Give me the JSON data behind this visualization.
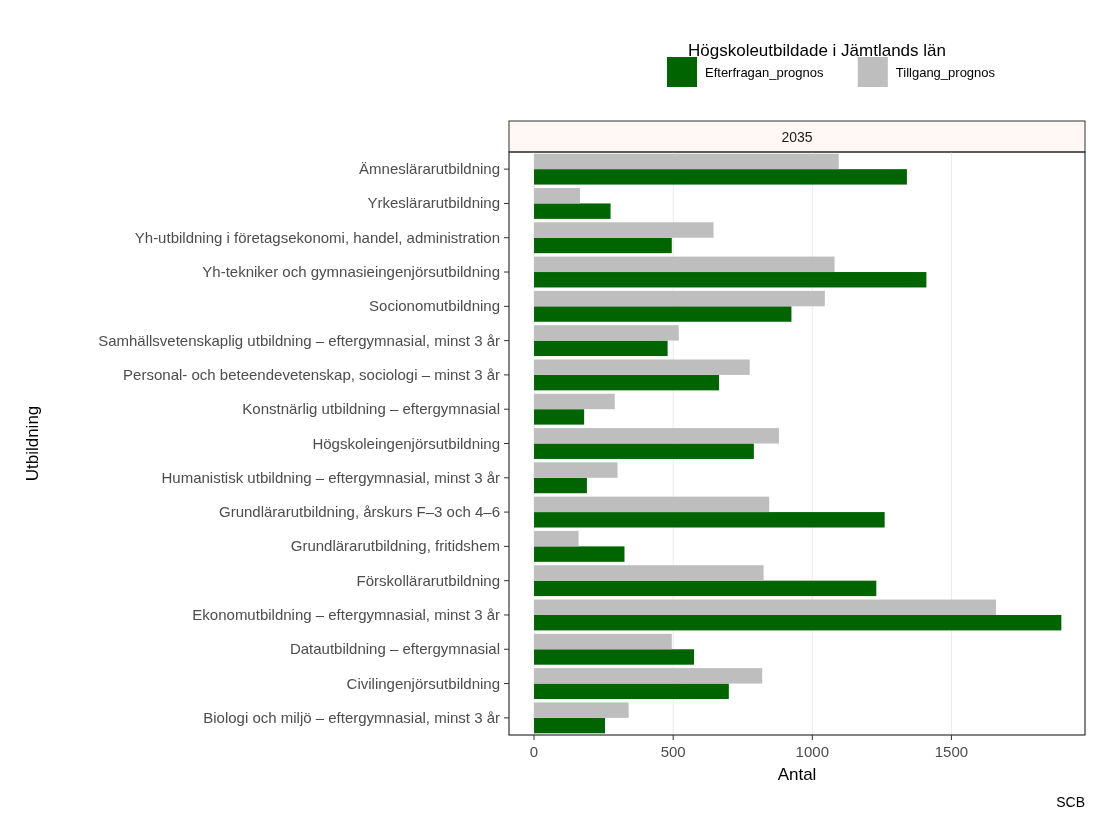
{
  "chart_data": {
    "type": "bar",
    "orientation": "horizontal",
    "title": "Högskoleutbildade i Jämtlands län",
    "subtitle": "2035",
    "xlabel": "Antal",
    "ylabel": "Utbildning",
    "categories": [
      "Ämneslärarutbildning",
      "Yrkeslärarutbildning",
      "Yh-utbildning i företagsekonomi, handel, administration",
      "Yh-tekniker och gymnasieingenjörsutbildning",
      "Socionomutbildning",
      "Samhällsvetenskaplig utbildning – eftergymnasial, minst 3 år",
      "Personal- och beteendevetenskap, sociologi – minst 3 år",
      "Konstnärlig utbildning – eftergymnasial",
      "Högskoleingenjörsutbildning",
      "Humanistisk utbildning – eftergymnasial, minst 3 år",
      "Grundlärarutbildning, årskurs F–3 och 4–6",
      "Grundlärarutbildning, fritidshem",
      "Förskollärarutbildning",
      "Ekonomutbildning – eftergymnasial, minst 3 år",
      "Datautbildning – eftergymnasial",
      "Civilingenjörsutbildning",
      "Biologi och miljö – eftergymnasial, minst 3 år"
    ],
    "series": [
      {
        "name": "Efterfragan_prognos",
        "color": "#006400",
        "values": [
          1340,
          275,
          495,
          1410,
          925,
          480,
          665,
          180,
          790,
          190,
          1260,
          325,
          1230,
          1895,
          575,
          700,
          255
        ]
      },
      {
        "name": "Tillgang_prognos",
        "color": "#bebebe",
        "values": [
          1095,
          165,
          645,
          1080,
          1045,
          520,
          775,
          290,
          880,
          300,
          845,
          160,
          825,
          1660,
          495,
          820,
          340
        ]
      }
    ],
    "xlim": [
      -90,
      1980
    ],
    "xticks": [
      0,
      500,
      1000,
      1500
    ],
    "grid": "x",
    "legend": "top",
    "annotations": [
      "SCB"
    ]
  }
}
